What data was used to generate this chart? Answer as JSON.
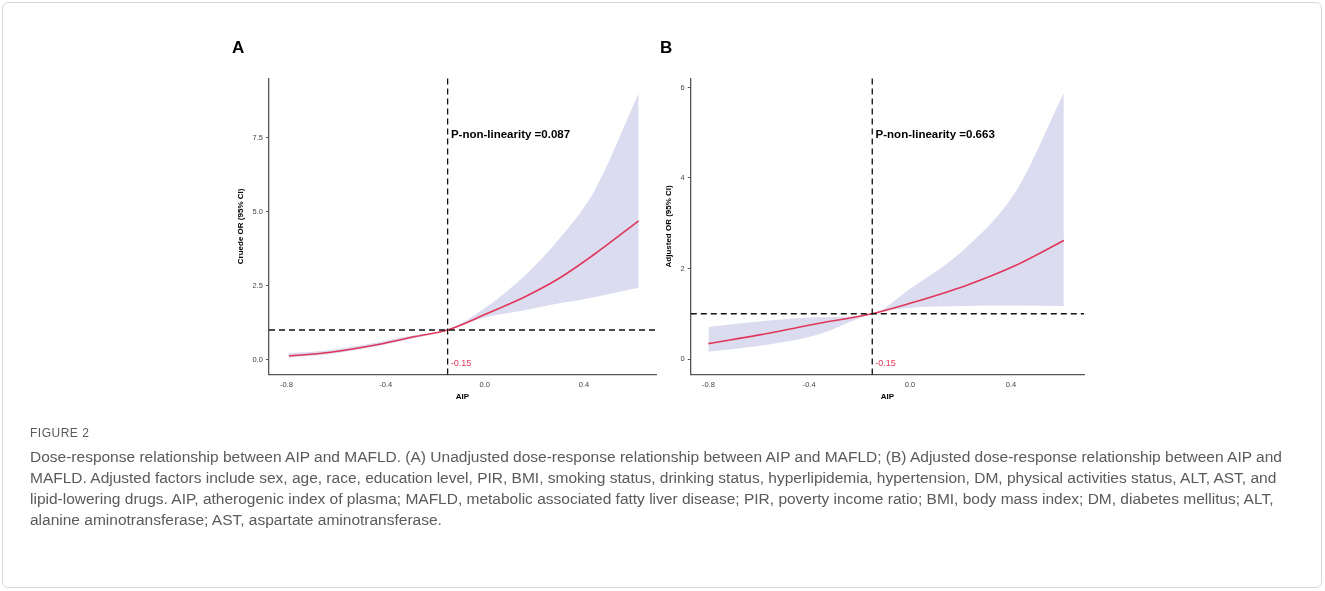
{
  "chart_data": [
    {
      "type": "line",
      "title": "A",
      "xlabel": "AIP",
      "ylabel": "Cruede OR (95% CI)",
      "x": [
        -0.79,
        -0.63,
        -0.43,
        -0.28,
        -0.15,
        0,
        0.17,
        0.3,
        0.44,
        0.62
      ],
      "series": [
        {
          "color": "#e0365a",
          "values": [
            0.12,
            0.24,
            0.51,
            0.78,
            1.0,
            1.52,
            2.16,
            2.75,
            3.55,
            4.69
          ],
          "lower": [
            0.07,
            0.18,
            0.46,
            0.74,
            1.0,
            1.42,
            1.68,
            1.9,
            2.11,
            2.43
          ],
          "upper": [
            0.22,
            0.32,
            0.59,
            0.83,
            1.0,
            1.74,
            2.91,
            4.08,
            5.68,
            9.0
          ]
        }
      ],
      "xlim": [
        -0.87,
        0.69
      ],
      "xticks": [
        -0.8,
        -0.4,
        {
          "value": 0,
          "label": "0.0"
        },
        0.4
      ],
      "ylim": [
        -0.5,
        9.5
      ],
      "yticks": [
        {
          "value": 0,
          "label": "0.0"
        },
        2.5,
        {
          "value": 5,
          "label": "5.0"
        },
        7.5
      ],
      "ref_lines": [
        {
          "axis": "x",
          "value": -0.15,
          "label": "-0.15",
          "line_style": "dashed"
        },
        {
          "axis": "y",
          "value": 1,
          "line_style": "dashed"
        }
      ],
      "annotations": [
        "P-non-linearity =0.087",
        "FIGURE 2",
        "Dose-response relationship between AIP and MAFLD. (A) Unadjusted dose-response relationship between AIP and MAFLD; (B) Adjusted dose-response relationship between AIP and MAFLD. Adjusted factors include sex, age, race, education level, PIR, BMI, smoking status, drinking status, hyperlipidemia, hypertension, DM, physical activities status, ALT, AST, and lipid-lowering drugs. AIP, atherogenic index of plasma; MAFLD, metabolic associated fatty liver disease; PIR, poverty income ratio; BMI, body mass index; DM, diabetes mellitus; ALT, alanine aminotransferase; AST, aspartate aminotransferase."
      ],
      "grid": false,
      "legend": false,
      "marker": "none",
      "line_style": "solid"
    },
    {
      "type": "line",
      "title": "B",
      "xlabel": "AIP",
      "ylabel": "Adjusted OR (95% CI)",
      "x": [
        -0.8,
        -0.56,
        -0.37,
        -0.15,
        0,
        0.22,
        0.42,
        0.61
      ],
      "series": [
        {
          "color": "#e0365a",
          "values": [
            0.34,
            0.57,
            0.78,
            1.0,
            1.23,
            1.62,
            2.07,
            2.62
          ],
          "lower": [
            0.16,
            0.32,
            0.53,
            1.0,
            1.13,
            1.17,
            1.18,
            1.17
          ],
          "upper": [
            0.71,
            0.85,
            0.92,
            1.0,
            1.55,
            2.45,
            3.71,
            5.88
          ]
        }
      ],
      "xlim": [
        -0.87,
        0.69
      ],
      "xticks": [
        -0.8,
        -0.4,
        {
          "value": 0,
          "label": "0.0"
        },
        0.4
      ],
      "ylim": [
        -0.34,
        6.2
      ],
      "yticks": [
        0,
        2,
        4,
        6
      ],
      "ref_lines": [
        {
          "axis": "x",
          "value": -0.15,
          "label": "-0.15",
          "line_style": "dashed"
        },
        {
          "axis": "y",
          "value": 1,
          "line_style": "dashed"
        }
      ],
      "annotations": [
        "P-non-linearity =0.663"
      ],
      "grid": false,
      "legend": false,
      "marker": "none",
      "line_style": "solid"
    }
  ]
}
